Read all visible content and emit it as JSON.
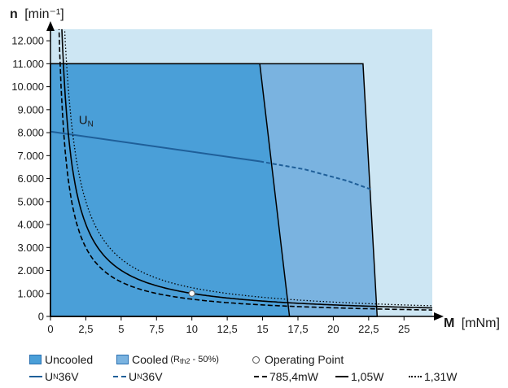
{
  "chart_data": {
    "type": "area",
    "ylabel_bold": "n",
    "ylabel_unit": "[min⁻¹]",
    "xlabel_bold": "M",
    "xlabel_unit": "[mNm]",
    "xlim": [
      0,
      27
    ],
    "ylim": [
      0,
      12500
    ],
    "x_ticks": [
      0,
      2.5,
      5,
      7.5,
      10,
      12.5,
      15,
      17.5,
      20,
      22.5,
      25
    ],
    "x_tick_labels": [
      "0",
      "2,5",
      "5",
      "7,5",
      "10",
      "12,5",
      "15",
      "17,5",
      "20",
      "22,5",
      "25"
    ],
    "y_ticks": [
      0,
      1000,
      2000,
      3000,
      4000,
      5000,
      6000,
      7000,
      8000,
      9000,
      10000,
      11000,
      12000
    ],
    "y_tick_labels": [
      "0",
      "1.000",
      "2.000",
      "3.000",
      "4.000",
      "5.000",
      "6.000",
      "7.000",
      "8.000",
      "9.000",
      "10.000",
      "11.000",
      "12.000"
    ],
    "regions": {
      "uncooled": [
        [
          0,
          0
        ],
        [
          0,
          11000
        ],
        [
          14.8,
          11000
        ],
        [
          16.9,
          0
        ]
      ],
      "cooled": [
        [
          0,
          0
        ],
        [
          0,
          11000
        ],
        [
          22.1,
          11000
        ],
        [
          23.1,
          0
        ]
      ]
    },
    "un_curve": {
      "label_main": "U",
      "label_sub": "N",
      "solid": [
        [
          0,
          8050
        ],
        [
          14.8,
          6750
        ]
      ],
      "dashed": [
        [
          14.8,
          6750
        ],
        [
          18,
          6400
        ],
        [
          21,
          5900
        ],
        [
          22.8,
          5500
        ]
      ]
    },
    "power_curves": [
      {
        "name": "785,4mW",
        "power_w": 0.7854,
        "style": "dashed"
      },
      {
        "name": "1,05W",
        "power_w": 1.05,
        "style": "solid"
      },
      {
        "name": "1,31W",
        "power_w": 1.31,
        "style": "dotted"
      }
    ],
    "operating_point": [
      10,
      1000
    ]
  },
  "legend": {
    "uncooled": "Uncooled",
    "cooled": "Cooled",
    "cooled_note_prefix": "(R",
    "cooled_note_sub": "th2",
    "cooled_note_suffix": " - 50%)",
    "operating_point": "Operating Point",
    "un_main": "U",
    "un_sub": "N",
    "un_value_solid": " 36V",
    "un_value_dashed": " 36V",
    "p1": "785,4mW",
    "p2": "1,05W",
    "p3": "1,31W"
  },
  "colors": {
    "background": "#cde6f3",
    "cooled": "#7ab3e0",
    "uncooled": "#4a9fd8",
    "un_line": "#1f5f99",
    "black": "#000000"
  }
}
